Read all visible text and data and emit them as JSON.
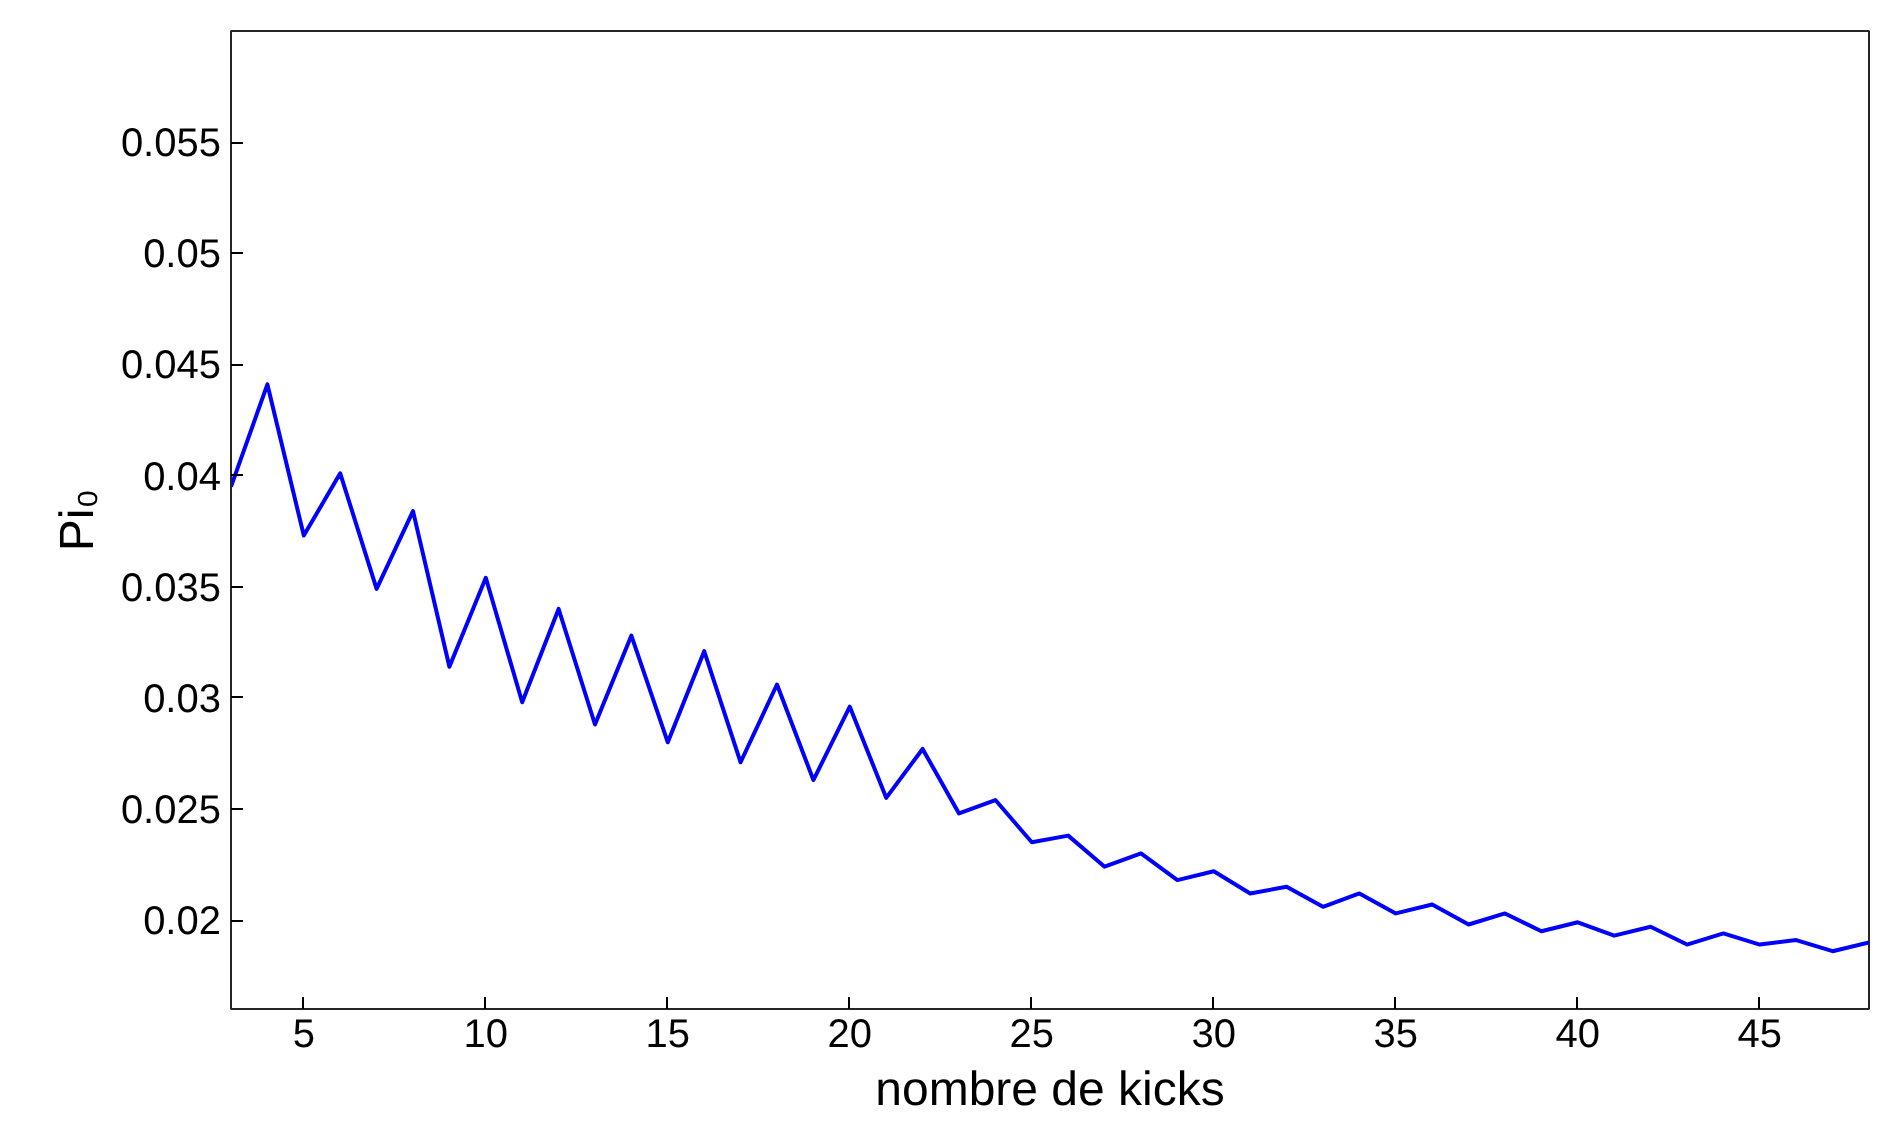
{
  "chart_data": {
    "type": "line",
    "xlabel": "nombre de kicks",
    "ylabel": "Pi₀",
    "x": [
      3,
      4,
      5,
      6,
      7,
      8,
      9,
      10,
      11,
      12,
      13,
      14,
      15,
      16,
      17,
      18,
      19,
      20,
      21,
      22,
      23,
      24,
      25,
      26,
      27,
      28,
      29,
      30,
      31,
      32,
      33,
      34,
      35,
      36,
      37,
      38,
      39,
      40,
      41,
      42,
      43,
      44,
      45,
      46,
      47,
      48
    ],
    "series": [
      {
        "color": "#0000ff",
        "values": [
          0.0395,
          0.0441,
          0.0373,
          0.0401,
          0.0349,
          0.0384,
          0.0314,
          0.0354,
          0.0298,
          0.034,
          0.0288,
          0.0328,
          0.028,
          0.0321,
          0.0271,
          0.0306,
          0.0263,
          0.0296,
          0.0255,
          0.0277,
          0.0248,
          0.0254,
          0.0235,
          0.0238,
          0.0224,
          0.023,
          0.0218,
          0.0222,
          0.0212,
          0.0215,
          0.0206,
          0.0212,
          0.0203,
          0.0207,
          0.0198,
          0.0203,
          0.0195,
          0.0199,
          0.0193,
          0.0197,
          0.0189,
          0.0194,
          0.0189,
          0.0191,
          0.0186,
          0.019
        ]
      }
    ],
    "xlim": [
      3,
      48
    ],
    "ylim": [
      0.016,
      0.06
    ],
    "xticks": [
      5,
      10,
      15,
      20,
      25,
      30,
      35,
      40,
      45
    ],
    "yticks": [
      0.02,
      0.025,
      0.03,
      0.035,
      0.04,
      0.045,
      0.05,
      0.055
    ],
    "grid": false,
    "marker": "none",
    "line_style": "solid"
  }
}
